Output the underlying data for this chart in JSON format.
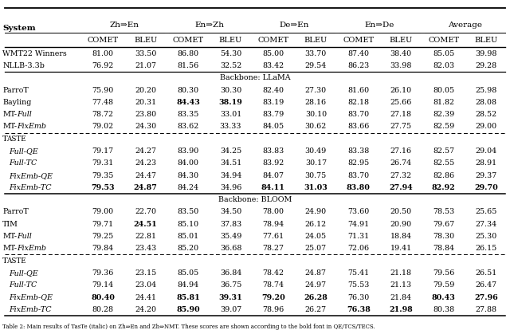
{
  "col_groups": [
    "Zh⇒En",
    "En⇒Zh",
    "De⇒En",
    "En⇒De",
    "Average"
  ],
  "sub_cols": [
    "COMET",
    "BLEU"
  ],
  "system_col": "System",
  "rows": [
    {
      "system": "WMT22 Winners",
      "values": [
        81.0,
        33.5,
        86.8,
        54.3,
        85.0,
        33.7,
        87.4,
        38.4,
        85.05,
        39.98
      ],
      "bold": [],
      "section": "top"
    },
    {
      "system": "NLLB-3.3b",
      "values": [
        76.92,
        21.07,
        81.56,
        32.52,
        83.42,
        29.54,
        86.23,
        33.98,
        82.03,
        29.28
      ],
      "bold": [],
      "section": "top"
    },
    {
      "system": "Backbone: LLaMA",
      "values": null,
      "bold": [],
      "section": "backbone_llama"
    },
    {
      "system": "ParroT",
      "values": [
        75.9,
        20.2,
        80.3,
        30.3,
        82.4,
        27.3,
        81.6,
        26.1,
        80.05,
        25.98
      ],
      "bold": [],
      "section": "llama"
    },
    {
      "system": "Bayling",
      "values": [
        77.48,
        20.31,
        84.43,
        38.19,
        83.19,
        28.16,
        82.18,
        25.66,
        81.82,
        28.08
      ],
      "bold": [
        2,
        3
      ],
      "section": "llama"
    },
    {
      "system": "MT-Full",
      "values": [
        78.72,
        23.8,
        83.35,
        33.01,
        83.79,
        30.1,
        83.7,
        27.18,
        82.39,
        28.52
      ],
      "bold": [],
      "section": "llama",
      "mt_italic": "Full"
    },
    {
      "system": "MT-FixEmb",
      "values": [
        79.02,
        24.3,
        83.62,
        33.33,
        84.05,
        30.62,
        83.66,
        27.75,
        82.59,
        29.0
      ],
      "bold": [],
      "section": "llama_last",
      "mt_italic": "FixEmb"
    },
    {
      "system": "TASTE",
      "values": null,
      "bold": [],
      "section": "taste_header_llama"
    },
    {
      "system": "Full-QE",
      "values": [
        79.17,
        24.27,
        83.9,
        34.25,
        83.83,
        30.49,
        83.38,
        27.16,
        82.57,
        29.04
      ],
      "bold": [],
      "section": "taste_llama",
      "italic": true
    },
    {
      "system": "Full-TC",
      "values": [
        79.31,
        24.23,
        84.0,
        34.51,
        83.92,
        30.17,
        82.95,
        26.74,
        82.55,
        28.91
      ],
      "bold": [],
      "section": "taste_llama",
      "italic": true
    },
    {
      "system": "FixEmb-QE",
      "values": [
        79.35,
        24.47,
        84.3,
        34.94,
        84.07,
        30.75,
        83.7,
        27.32,
        82.86,
        29.37
      ],
      "bold": [],
      "section": "taste_llama",
      "italic": true
    },
    {
      "system": "FixEmb-TC",
      "values": [
        79.53,
        24.87,
        84.24,
        34.96,
        84.11,
        31.03,
        83.8,
        27.94,
        82.92,
        29.7
      ],
      "bold": [
        0,
        1,
        4,
        5,
        6,
        7,
        8,
        9
      ],
      "section": "taste_llama_last",
      "italic": true
    },
    {
      "system": "Backbone: BLOOM",
      "values": null,
      "bold": [],
      "section": "backbone_bloom"
    },
    {
      "system": "ParroT",
      "values": [
        79.0,
        22.7,
        83.5,
        34.5,
        78.0,
        24.9,
        73.6,
        20.5,
        78.53,
        25.65
      ],
      "bold": [],
      "section": "bloom"
    },
    {
      "system": "TIM",
      "values": [
        79.71,
        24.51,
        85.1,
        37.83,
        78.94,
        26.12,
        74.91,
        20.9,
        79.67,
        27.34
      ],
      "bold": [
        1
      ],
      "section": "bloom"
    },
    {
      "system": "MT-Full",
      "values": [
        79.25,
        22.81,
        85.01,
        35.49,
        77.61,
        24.05,
        71.31,
        18.84,
        78.3,
        25.3
      ],
      "bold": [],
      "section": "bloom",
      "mt_italic": "Full"
    },
    {
      "system": "MT-FixEmb",
      "values": [
        79.84,
        23.43,
        85.2,
        36.68,
        78.27,
        25.07,
        72.06,
        19.41,
        78.84,
        26.15
      ],
      "bold": [],
      "section": "bloom_last",
      "mt_italic": "FixEmb"
    },
    {
      "system": "TASTE",
      "values": null,
      "bold": [],
      "section": "taste_header_bloom"
    },
    {
      "system": "Full-QE",
      "values": [
        79.36,
        23.15,
        85.05,
        36.84,
        78.42,
        24.87,
        75.41,
        21.18,
        79.56,
        26.51
      ],
      "bold": [],
      "section": "taste_bloom",
      "italic": true
    },
    {
      "system": "Full-TC",
      "values": [
        79.14,
        23.04,
        84.94,
        36.75,
        78.74,
        24.97,
        75.53,
        21.13,
        79.59,
        26.47
      ],
      "bold": [],
      "section": "taste_bloom",
      "italic": true
    },
    {
      "system": "FixEmb-QE",
      "values": [
        80.4,
        24.41,
        85.81,
        39.31,
        79.2,
        26.28,
        76.3,
        21.84,
        80.43,
        27.96
      ],
      "bold": [
        0,
        2,
        3,
        4,
        5,
        8,
        9
      ],
      "section": "taste_bloom",
      "italic": true
    },
    {
      "system": "FixEmb-TC",
      "values": [
        80.28,
        24.2,
        85.9,
        39.07,
        78.96,
        26.27,
        76.38,
        21.98,
        80.38,
        27.88
      ],
      "bold": [
        2,
        6,
        7
      ],
      "section": "taste_bloom_last",
      "italic": true
    }
  ],
  "caption": "Table 2: Main results of TasTe (italic) on Zh⇒En and Zh⇔NMT. These scores are shown according to the bold font in QE/TCS/TECS.",
  "fs_header": 7.5,
  "fs_subheader": 7.0,
  "fs_data": 6.8,
  "fs_caption": 5.0
}
